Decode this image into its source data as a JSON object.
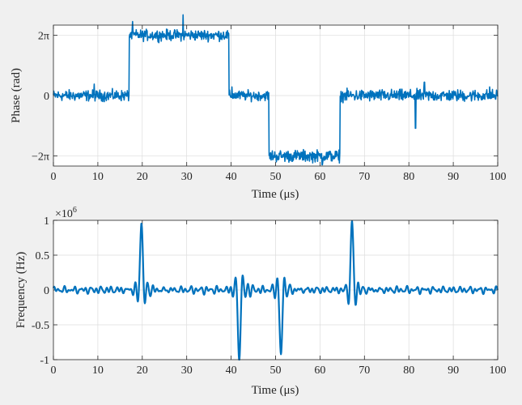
{
  "figure": {
    "background": "#f0f0f0",
    "axes_background": "#ffffff",
    "line_color": "#0072bd",
    "grid_color": "#dcdcdc"
  },
  "chart_data": [
    {
      "type": "line",
      "title": "",
      "xlabel": "Time (μs)",
      "ylabel": "Phase (rad)",
      "xlim": [
        0,
        100
      ],
      "ylim": [
        -7.33,
        7.33
      ],
      "grid": true,
      "xticks": [
        0,
        10,
        20,
        30,
        40,
        50,
        60,
        70,
        80,
        90,
        100
      ],
      "xtick_labels": [
        "0",
        "10",
        "20",
        "30",
        "40",
        "50",
        "60",
        "70",
        "80",
        "90",
        "100"
      ],
      "yticks": [
        6.283,
        0,
        -6.283
      ],
      "ytick_labels": [
        "2π",
        "0",
        "−2π"
      ],
      "series": [
        {
          "segments": [
            {
              "x_start": 0,
              "x_end": 17,
              "level": 0,
              "noise": 0.55
            },
            {
              "x_start": 17,
              "x_end": 39.5,
              "level": 6.283,
              "noise": 0.55
            },
            {
              "x_start": 39.5,
              "x_end": 48.5,
              "level": 0,
              "noise": 0.5
            },
            {
              "x_start": 48.5,
              "x_end": 64.5,
              "level": -6.283,
              "noise": 0.6
            },
            {
              "x_start": 64.5,
              "x_end": 100,
              "level": 0,
              "noise": 0.6
            }
          ],
          "spikes": [
            {
              "x": 9.2,
              "y": 1.2
            },
            {
              "x": 17.8,
              "y": 7.7
            },
            {
              "x": 29.2,
              "y": 8.4
            },
            {
              "x": 40.2,
              "y": 0.9
            },
            {
              "x": 60.5,
              "y": -7.2
            },
            {
              "x": 64.2,
              "y": -6.7
            },
            {
              "x": 81.5,
              "y": -3.4
            },
            {
              "x": 83.5,
              "y": 1.4
            },
            {
              "x": 98.2,
              "y": 0.9
            }
          ]
        }
      ]
    },
    {
      "type": "line",
      "title": "",
      "xlabel": "Time (μs)",
      "ylabel": "Frequency (Hz)",
      "exponent_label": "×10",
      "exponent_value": "6",
      "xlim": [
        0,
        100
      ],
      "ylim": [
        -1,
        1
      ],
      "grid": true,
      "xticks": [
        0,
        10,
        20,
        30,
        40,
        50,
        60,
        70,
        80,
        90,
        100
      ],
      "xtick_labels": [
        "0",
        "10",
        "20",
        "30",
        "40",
        "50",
        "60",
        "70",
        "80",
        "90",
        "100"
      ],
      "yticks": [
        1,
        0.5,
        0,
        -0.5,
        -1
      ],
      "ytick_labels": [
        "1",
        "0.5",
        "0",
        "-0.5",
        "-1"
      ],
      "series": [
        {
          "units": "×10^6 Hz",
          "pulses": [
            {
              "x": 19.8,
              "amplitude": 1.0
            },
            {
              "x": 41.8,
              "amplitude": -1.0
            },
            {
              "x": 51.2,
              "amplitude": -0.97
            },
            {
              "x": 67.2,
              "amplitude": 1.0
            }
          ]
        }
      ]
    }
  ]
}
